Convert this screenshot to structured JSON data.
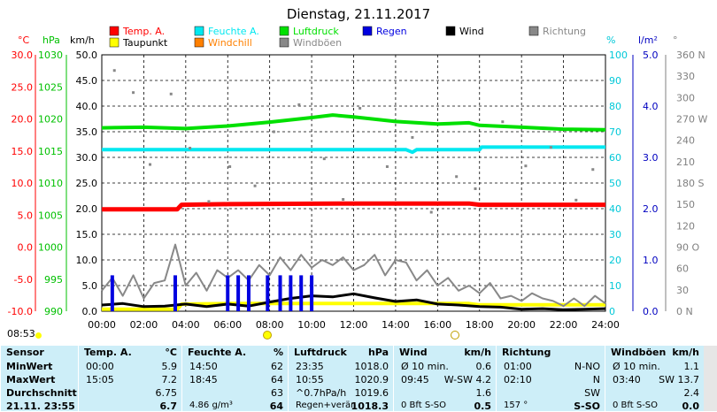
{
  "chart_data": {
    "type": "line",
    "title": "Dienstag, 21.11.2017",
    "x_ticks": [
      "00:00",
      "02:00",
      "04:00",
      "06:00",
      "08:00",
      "10:00",
      "12:00",
      "14:00",
      "16:00",
      "18:00",
      "20:00",
      "22:00",
      "24:00"
    ],
    "xlim": [
      0,
      24
    ],
    "legend": [
      {
        "name": "Temp. A.",
        "color": "#ff0000"
      },
      {
        "name": "Feuchte A.",
        "color": "#00e8f0"
      },
      {
        "name": "Luftdruck",
        "color": "#00e000"
      },
      {
        "name": "Regen",
        "color": "#0000e0"
      },
      {
        "name": "Wind",
        "color": "#000000"
      },
      {
        "name": "Richtung",
        "color": "#888888"
      },
      {
        "name": "Taupunkt",
        "color": "#ffff00"
      },
      {
        "name": "Windchill",
        "color": "#ff8000"
      },
      {
        "name": "Windböen",
        "color": "#888888"
      }
    ],
    "axes": {
      "temp": {
        "unit": "°C",
        "color": "#ff0000",
        "ticks": [
          "30.0",
          "25.0",
          "20.0",
          "15.0",
          "10.0",
          "5.0",
          "0.0",
          "-5.0",
          "-10.0"
        ],
        "ylim": [
          -10,
          30
        ]
      },
      "pressure": {
        "unit": "hPa",
        "color": "#00c000",
        "ticks": [
          "1030",
          "1025",
          "1020",
          "1015",
          "1010",
          "1005",
          "1000",
          "995",
          "990"
        ],
        "ylim": [
          990,
          1030
        ]
      },
      "wind": {
        "unit": "km/h",
        "color": "#000000",
        "ticks": [
          "50.0",
          "45.0",
          "40.0",
          "35.0",
          "30.0",
          "25.0",
          "20.0",
          "15.0",
          "10.0",
          "5.0",
          "0.0"
        ],
        "ylim": [
          0,
          50
        ]
      },
      "humidity": {
        "unit": "%",
        "color": "#00c8d8",
        "ticks": [
          "100",
          "90",
          "80",
          "70",
          "60",
          "50",
          "40",
          "30",
          "20",
          "10",
          "0"
        ],
        "ylim": [
          0,
          100
        ]
      },
      "rain": {
        "unit": "l/m²",
        "color": "#0000c0",
        "ticks": [
          "5.0",
          "4.0",
          "3.0",
          "2.0",
          "1.0",
          "0.0"
        ],
        "ylim": [
          0,
          5
        ]
      },
      "direction": {
        "unit": "°",
        "color": "#808080",
        "ticks": [
          "360 N",
          "330",
          "300",
          "270 W",
          "240",
          "210",
          "180 S",
          "150",
          "120",
          "90 O",
          "60",
          "30",
          "0 N"
        ],
        "ylim": [
          0,
          360
        ]
      }
    },
    "series": [
      {
        "name": "Temp. A.",
        "axis": "temp",
        "x": [
          0,
          3.6,
          3.8,
          6,
          12,
          16,
          17.5,
          18,
          20,
          24
        ],
        "y": [
          5.9,
          5.9,
          6.6,
          6.7,
          6.8,
          6.8,
          6.8,
          6.6,
          6.6,
          6.6
        ]
      },
      {
        "name": "Taupunkt",
        "axis": "temp",
        "x": [
          0,
          3.6,
          3.8,
          6,
          12,
          16,
          17.5,
          18,
          20,
          24
        ],
        "y": [
          -9.7,
          -9.7,
          -8.9,
          -8.8,
          -8.8,
          -8.8,
          -8.8,
          -9.0,
          -9.0,
          -9.0
        ]
      },
      {
        "name": "Feuchte A.",
        "axis": "humidity",
        "x": [
          0,
          14.5,
          14.8,
          15,
          18,
          18.1,
          24
        ],
        "y": [
          63,
          63,
          62,
          63,
          63,
          64,
          64
        ]
      },
      {
        "name": "Luftdruck",
        "axis": "pressure",
        "x": [
          0,
          2,
          4,
          6,
          8,
          10,
          11,
          12,
          14,
          16,
          17.5,
          18,
          20,
          22,
          24
        ],
        "y": [
          1018.6,
          1018.7,
          1018.5,
          1018.9,
          1019.5,
          1020.2,
          1020.6,
          1020.3,
          1019.6,
          1019.2,
          1019.4,
          1019.0,
          1018.7,
          1018.4,
          1018.3
        ]
      },
      {
        "name": "Wind",
        "axis": "wind",
        "x": [
          0,
          1,
          2,
          3,
          4,
          5,
          6,
          7,
          8,
          9,
          10,
          11,
          12,
          13,
          14,
          15,
          16,
          17,
          18,
          19,
          20,
          21,
          22,
          23,
          24
        ],
        "y": [
          1.2,
          1.5,
          0.9,
          1.0,
          1.4,
          0.9,
          1.4,
          1.0,
          1.8,
          2.5,
          3.0,
          2.8,
          3.4,
          2.6,
          1.9,
          2.2,
          1.4,
          1.2,
          0.9,
          0.8,
          0.4,
          0.5,
          0.3,
          0.4,
          0.5
        ]
      },
      {
        "name": "Windböen",
        "axis": "wind",
        "x": [
          0,
          0.5,
          1,
          1.5,
          2,
          2.5,
          3,
          3.5,
          4,
          4.5,
          5,
          5.5,
          6,
          6.5,
          7,
          7.5,
          8,
          8.5,
          9,
          9.5,
          10,
          10.5,
          11,
          11.5,
          12,
          12.5,
          13,
          13.5,
          14,
          14.5,
          15,
          15.5,
          16,
          16.5,
          17,
          17.5,
          18,
          18.5,
          19,
          19.5,
          20,
          20.5,
          21,
          21.5,
          22,
          22.5,
          23,
          23.5,
          24
        ],
        "y": [
          4.0,
          6.5,
          3.0,
          7.0,
          2.5,
          5.5,
          6.0,
          13.0,
          5.0,
          7.5,
          4.0,
          8.0,
          6.5,
          8.0,
          6.0,
          9.0,
          7.0,
          10.5,
          8.0,
          11.0,
          8.5,
          10.0,
          9.0,
          10.5,
          8.0,
          9.0,
          11.0,
          7.0,
          10.0,
          9.5,
          6.0,
          8.0,
          5.0,
          6.5,
          4.0,
          5.0,
          3.5,
          5.5,
          2.5,
          3.0,
          2.0,
          3.5,
          2.5,
          2.0,
          1.0,
          2.5,
          1.0,
          3.0,
          1.5
        ]
      },
      {
        "name": "Regen",
        "axis": "rain",
        "x": [
          0.5,
          3.5,
          6.0,
          6.5,
          7.0,
          7.9,
          8.5,
          9.0,
          9.5,
          10.0
        ],
        "y": [
          0.7,
          0.7,
          0.7,
          0.7,
          0.7,
          0.7,
          0.7,
          0.7,
          0.7,
          0.7
        ]
      },
      {
        "name": "Richtung",
        "axis": "direction",
        "x": [
          0.6,
          1.5,
          2.3,
          3.3,
          4.2,
          5.1,
          6.1,
          7.3,
          8.2,
          9.4,
          10.6,
          11.5,
          12.3,
          13.6,
          14.8,
          15.7,
          16.9,
          17.8,
          19.1,
          20.2,
          21.4,
          22.6,
          23.4
        ],
        "y": [
          338,
          307,
          206,
          305,
          229,
          154,
          203,
          176,
          252,
          290,
          214,
          157,
          285,
          203,
          244,
          139,
          189,
          172,
          266,
          204,
          230,
          156,
          199
        ]
      }
    ]
  },
  "bottom": {
    "time_left": "08:53",
    "columns": [
      {
        "header": "Sensor",
        "rows": [
          "MinWert",
          "MaxWert",
          "Durchschnitt",
          "21.11. 23:55"
        ]
      },
      {
        "header": "Temp. A.",
        "unit": "°C",
        "rows": [
          [
            "00:00",
            "5.9"
          ],
          [
            "15:05",
            "7.2"
          ],
          [
            "",
            "6.75"
          ],
          [
            "",
            "6.7"
          ]
        ]
      },
      {
        "header": "Feuchte A.",
        "unit": "%",
        "rows": [
          [
            "14:50",
            "62"
          ],
          [
            "18:45",
            "64"
          ],
          [
            "",
            "63"
          ],
          [
            "4.86 g/m³",
            "64"
          ]
        ]
      },
      {
        "header": "Luftdruck",
        "unit": "hPa",
        "rows": [
          [
            "23:35",
            "1018.0"
          ],
          [
            "10:55",
            "1020.9"
          ],
          [
            "^0.7hPa/h",
            "1019.6"
          ],
          [
            "Regen+verän",
            "1018.3"
          ]
        ]
      },
      {
        "header": "Wind",
        "unit": "km/h",
        "rows": [
          [
            "Ø 10 min.",
            "0.6"
          ],
          [
            "09:45",
            "W-SW 4.2"
          ],
          [
            "",
            "1.6"
          ],
          [
            "0 Bft S-SO",
            "0.5"
          ]
        ]
      },
      {
        "header": "Richtung",
        "unit": "",
        "rows": [
          [
            "01:00",
            "N-NO"
          ],
          [
            "02:10",
            "N"
          ],
          [
            "",
            "SW"
          ],
          [
            "157 °",
            "S-SO"
          ]
        ]
      },
      {
        "header": "Windböen",
        "unit": "km/h",
        "rows": [
          [
            "Ø 10 min.",
            "1.1"
          ],
          [
            "03:40",
            "SW 13.7"
          ],
          [
            "",
            "2.4"
          ],
          [
            "0 Bft S-SO",
            "0.0"
          ]
        ]
      }
    ]
  }
}
